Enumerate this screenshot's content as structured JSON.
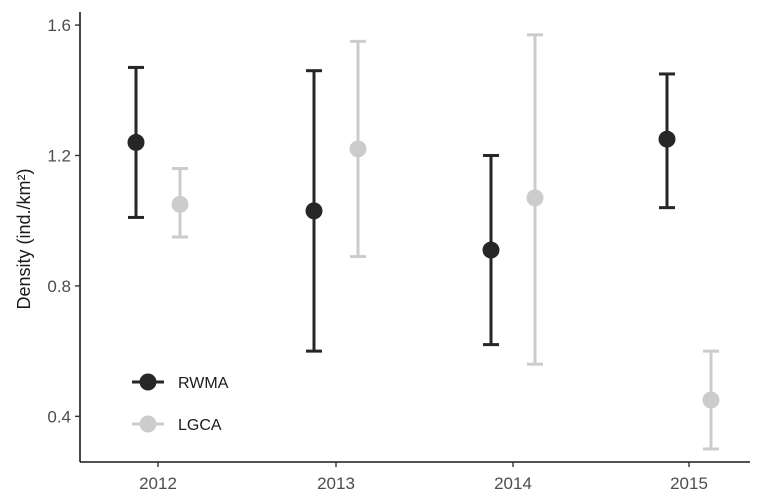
{
  "chart_data": {
    "type": "scatter",
    "title": "",
    "xlabel": "",
    "ylabel": "Density (ind./km²)",
    "categories": [
      "2012",
      "2013",
      "2014",
      "2015"
    ],
    "ylim": [
      0.26,
      1.64
    ],
    "yticks": [
      0.4,
      0.8,
      1.2,
      1.6
    ],
    "ytick_labels": [
      "0.4",
      "0.8",
      "1.2",
      "1.6"
    ],
    "grid": false,
    "legend_position": "bottom-left",
    "series": [
      {
        "name": "RWMA",
        "color": "#262626",
        "values": [
          1.24,
          1.03,
          0.91,
          1.25
        ],
        "lower": [
          1.01,
          0.6,
          0.62,
          1.04
        ],
        "upper": [
          1.47,
          1.46,
          1.2,
          1.45
        ]
      },
      {
        "name": "LGCA",
        "color": "#cccccc",
        "values": [
          1.05,
          1.22,
          1.07,
          0.45
        ],
        "lower": [
          0.95,
          0.89,
          0.56,
          0.3
        ],
        "upper": [
          1.16,
          1.55,
          1.57,
          0.6
        ]
      }
    ]
  }
}
